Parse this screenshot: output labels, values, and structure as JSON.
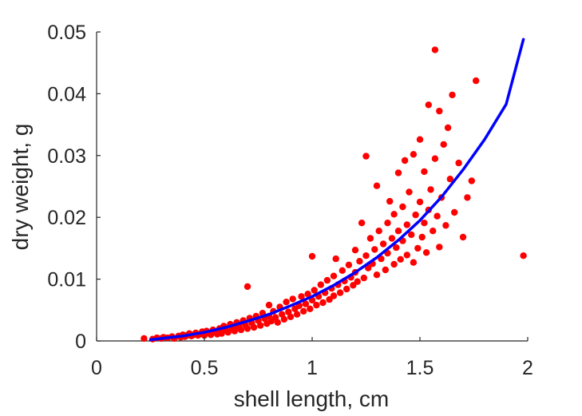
{
  "chart_data": {
    "type": "scatter",
    "title": "",
    "xlabel": "shell length, cm",
    "ylabel": "dry weight, g",
    "xlim": [
      0,
      2
    ],
    "ylim": [
      0,
      0.05
    ],
    "xticks": [
      "0",
      "0.5",
      "1",
      "1.5",
      "2"
    ],
    "yticks": [
      "0",
      "0.01",
      "0.02",
      "0.03",
      "0.04",
      "0.05"
    ],
    "grid": false,
    "legend": "none",
    "colors": {
      "points": "#ff0000",
      "fit": "#0000ff",
      "axes": "#262626"
    },
    "fit_curve": {
      "x": [
        0.25,
        0.4,
        0.5,
        0.6,
        0.7,
        0.8,
        0.9,
        1.0,
        1.1,
        1.2,
        1.3,
        1.4,
        1.5,
        1.6,
        1.7,
        1.8,
        1.9,
        1.98
      ],
      "y": [
        0.0002,
        0.0008,
        0.0014,
        0.0022,
        0.0032,
        0.0043,
        0.0057,
        0.0072,
        0.009,
        0.0111,
        0.0135,
        0.0163,
        0.0195,
        0.0233,
        0.0277,
        0.0326,
        0.0383,
        0.0488
      ]
    },
    "series": [
      {
        "points": [
          [
            0.22,
            0.0004
          ],
          [
            0.26,
            0.0003
          ],
          [
            0.28,
            0.0005
          ],
          [
            0.3,
            0.0004
          ],
          [
            0.31,
            0.0006
          ],
          [
            0.33,
            0.0005
          ],
          [
            0.35,
            0.0007
          ],
          [
            0.36,
            0.0004
          ],
          [
            0.38,
            0.0008
          ],
          [
            0.39,
            0.0006
          ],
          [
            0.4,
            0.001
          ],
          [
            0.41,
            0.0007
          ],
          [
            0.42,
            0.0009
          ],
          [
            0.43,
            0.0012
          ],
          [
            0.44,
            0.0008
          ],
          [
            0.45,
            0.001
          ],
          [
            0.46,
            0.0013
          ],
          [
            0.47,
            0.0009
          ],
          [
            0.48,
            0.0011
          ],
          [
            0.49,
            0.0015
          ],
          [
            0.5,
            0.0012
          ],
          [
            0.5,
            0.0009
          ],
          [
            0.51,
            0.0016
          ],
          [
            0.52,
            0.0013
          ],
          [
            0.53,
            0.001
          ],
          [
            0.54,
            0.0018
          ],
          [
            0.55,
            0.0014
          ],
          [
            0.56,
            0.0011
          ],
          [
            0.57,
            0.002
          ],
          [
            0.58,
            0.0016
          ],
          [
            0.58,
            0.0012
          ],
          [
            0.59,
            0.0024
          ],
          [
            0.6,
            0.0018
          ],
          [
            0.61,
            0.0014
          ],
          [
            0.62,
            0.0027
          ],
          [
            0.63,
            0.002
          ],
          [
            0.64,
            0.0016
          ],
          [
            0.65,
            0.003
          ],
          [
            0.65,
            0.0022
          ],
          [
            0.66,
            0.0025
          ],
          [
            0.67,
            0.0018
          ],
          [
            0.68,
            0.0033
          ],
          [
            0.69,
            0.0026
          ],
          [
            0.7,
            0.0088
          ],
          [
            0.7,
            0.002
          ],
          [
            0.71,
            0.0037
          ],
          [
            0.72,
            0.0029
          ],
          [
            0.73,
            0.0022
          ],
          [
            0.74,
            0.004
          ],
          [
            0.75,
            0.0033
          ],
          [
            0.76,
            0.0025
          ],
          [
            0.77,
            0.0045
          ],
          [
            0.78,
            0.0036
          ],
          [
            0.79,
            0.0028
          ],
          [
            0.8,
            0.0058
          ],
          [
            0.8,
            0.004
          ],
          [
            0.81,
            0.0032
          ],
          [
            0.82,
            0.0048
          ],
          [
            0.83,
            0.0038
          ],
          [
            0.84,
            0.003
          ],
          [
            0.85,
            0.0055
          ],
          [
            0.86,
            0.0043
          ],
          [
            0.87,
            0.0035
          ],
          [
            0.88,
            0.0063
          ],
          [
            0.89,
            0.0047
          ],
          [
            0.9,
            0.0039
          ],
          [
            0.91,
            0.0068
          ],
          [
            0.92,
            0.0052
          ],
          [
            0.93,
            0.0043
          ],
          [
            0.94,
            0.0057
          ],
          [
            0.95,
            0.0072
          ],
          [
            0.96,
            0.0048
          ],
          [
            0.97,
            0.006
          ],
          [
            0.98,
            0.0076
          ],
          [
            0.99,
            0.0052
          ],
          [
            1.0,
            0.0137
          ],
          [
            1.0,
            0.0066
          ],
          [
            1.01,
            0.0082
          ],
          [
            1.02,
            0.0058
          ],
          [
            1.03,
            0.0072
          ],
          [
            1.04,
            0.0091
          ],
          [
            1.05,
            0.0062
          ],
          [
            1.06,
            0.0078
          ],
          [
            1.07,
            0.0098
          ],
          [
            1.08,
            0.0067
          ],
          [
            1.09,
            0.0085
          ],
          [
            1.1,
            0.0105
          ],
          [
            1.1,
            0.0073
          ],
          [
            1.11,
            0.0133
          ],
          [
            1.12,
            0.0091
          ],
          [
            1.13,
            0.0078
          ],
          [
            1.14,
            0.0114
          ],
          [
            1.15,
            0.0097
          ],
          [
            1.16,
            0.0084
          ],
          [
            1.17,
            0.0123
          ],
          [
            1.18,
            0.0103
          ],
          [
            1.19,
            0.009
          ],
          [
            1.2,
            0.0147
          ],
          [
            1.2,
            0.0111
          ],
          [
            1.21,
            0.0096
          ],
          [
            1.22,
            0.0129
          ],
          [
            1.23,
            0.0191
          ],
          [
            1.24,
            0.0102
          ],
          [
            1.25,
            0.0299
          ],
          [
            1.25,
            0.0138
          ],
          [
            1.26,
            0.0118
          ],
          [
            1.27,
            0.0166
          ],
          [
            1.28,
            0.0125
          ],
          [
            1.29,
            0.0148
          ],
          [
            1.3,
            0.0251
          ],
          [
            1.3,
            0.0107
          ],
          [
            1.31,
            0.0178
          ],
          [
            1.32,
            0.0133
          ],
          [
            1.33,
            0.0157
          ],
          [
            1.34,
            0.0115
          ],
          [
            1.35,
            0.0191
          ],
          [
            1.35,
            0.0142
          ],
          [
            1.36,
            0.0226
          ],
          [
            1.37,
            0.0166
          ],
          [
            1.38,
            0.0124
          ],
          [
            1.38,
            0.0205
          ],
          [
            1.39,
            0.0151
          ],
          [
            1.4,
            0.0272
          ],
          [
            1.4,
            0.0178
          ],
          [
            1.41,
            0.0132
          ],
          [
            1.42,
            0.0217
          ],
          [
            1.42,
            0.0162
          ],
          [
            1.43,
            0.0292
          ],
          [
            1.44,
            0.0188
          ],
          [
            1.44,
            0.0139
          ],
          [
            1.45,
            0.0241
          ],
          [
            1.46,
            0.0172
          ],
          [
            1.47,
            0.0127
          ],
          [
            1.47,
            0.0302
          ],
          [
            1.48,
            0.0204
          ],
          [
            1.49,
            0.015
          ],
          [
            1.5,
            0.0326
          ],
          [
            1.5,
            0.0225
          ],
          [
            1.51,
            0.0168
          ],
          [
            1.52,
            0.0191
          ],
          [
            1.52,
            0.0274
          ],
          [
            1.53,
            0.0143
          ],
          [
            1.54,
            0.0382
          ],
          [
            1.54,
            0.0212
          ],
          [
            1.55,
            0.0245
          ],
          [
            1.56,
            0.0178
          ],
          [
            1.57,
            0.0471
          ],
          [
            1.57,
            0.0295
          ],
          [
            1.58,
            0.0202
          ],
          [
            1.59,
            0.0372
          ],
          [
            1.59,
            0.0152
          ],
          [
            1.6,
            0.0232
          ],
          [
            1.61,
            0.0318
          ],
          [
            1.62,
            0.0187
          ],
          [
            1.63,
            0.0345
          ],
          [
            1.64,
            0.0262
          ],
          [
            1.65,
            0.0398
          ],
          [
            1.66,
            0.0208
          ],
          [
            1.68,
            0.0288
          ],
          [
            1.7,
            0.0168
          ],
          [
            1.72,
            0.0232
          ],
          [
            1.74,
            0.0259
          ],
          [
            1.76,
            0.0421
          ],
          [
            1.98,
            0.0138
          ]
        ]
      }
    ]
  }
}
